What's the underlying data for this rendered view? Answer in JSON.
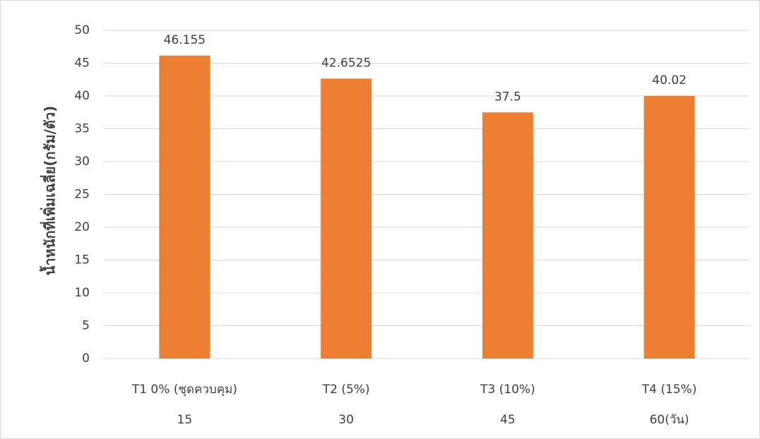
{
  "chart_data": {
    "type": "bar",
    "y_axis_label": "น้ำหนักที่เพิ่มเฉลี่ย(กรัม/ตัว)",
    "categories": [
      [
        "T1 0% (ชุดควบคุม)",
        "15"
      ],
      [
        "T2 (5%)",
        "30"
      ],
      [
        "T3 (10%)",
        "45"
      ],
      [
        "T4 (15%)",
        "60(วัน)"
      ]
    ],
    "values": [
      46.155,
      42.6525,
      37.5,
      40.02
    ],
    "color": "#ed7d31",
    "ylim": [
      0,
      50
    ],
    "yticks": [
      0,
      5,
      10,
      15,
      20,
      25,
      30,
      35,
      40,
      45,
      50
    ],
    "grid": true
  }
}
